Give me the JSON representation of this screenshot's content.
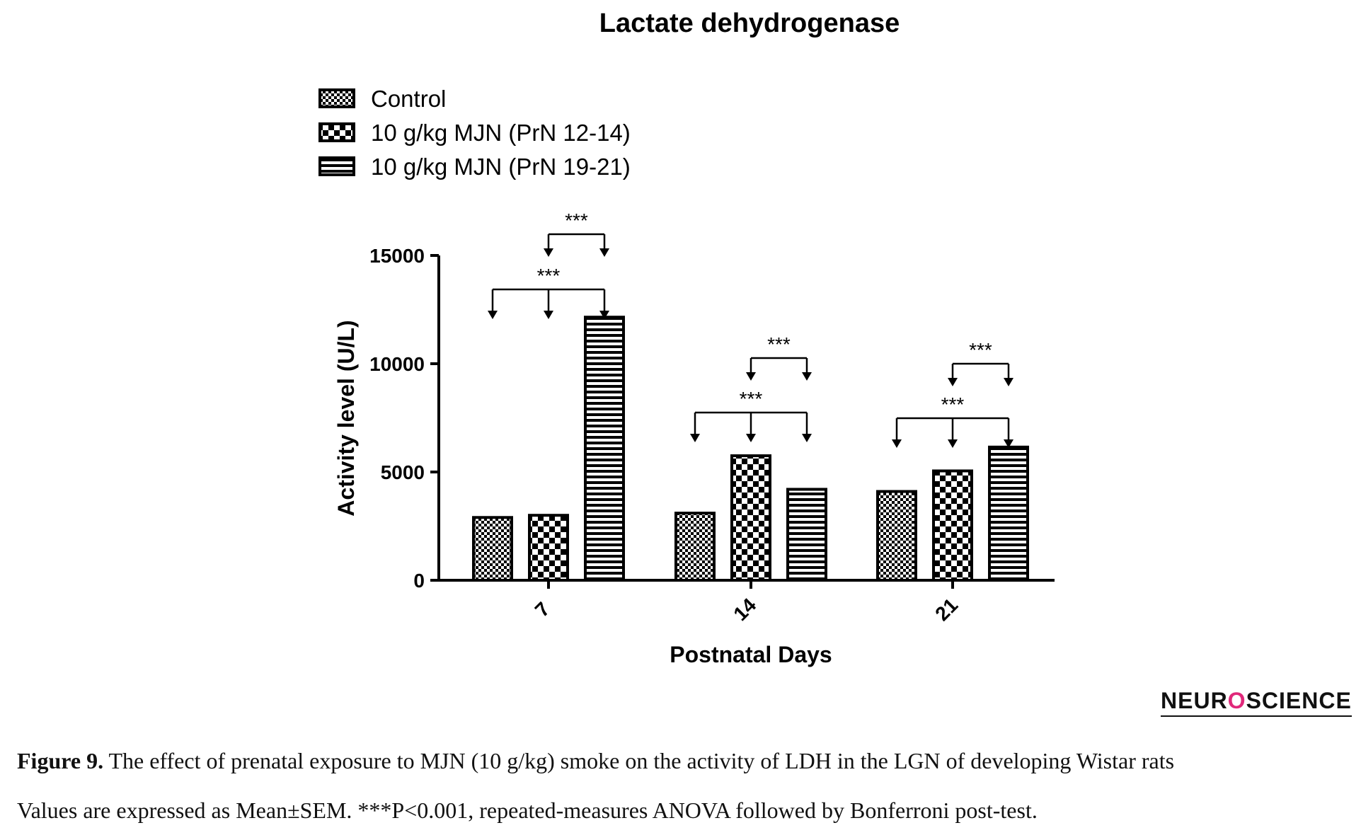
{
  "chart_data": {
    "type": "bar",
    "title": "Lactate dehydrogenase",
    "xlabel": "Postnatal Days",
    "ylabel": "Activity level (U/L)",
    "ylim": [
      0,
      15000
    ],
    "yticks": [
      "0",
      "5000",
      "10000",
      "15000"
    ],
    "categories": [
      "7",
      "14",
      "21"
    ],
    "legend_position": "top-left",
    "series": [
      {
        "name": "Control",
        "values": [
          2900,
          3100,
          4100
        ],
        "pattern": "fine-checker"
      },
      {
        "name": "10 g/kg MJN (PrN 12-14)",
        "values": [
          3000,
          5750,
          5050
        ],
        "pattern": "checker"
      },
      {
        "name": "10 g/kg MJN (PrN 19-21)",
        "values": [
          12150,
          4200,
          6150
        ],
        "pattern": "horizontal-stripes"
      }
    ],
    "significance_label": "***"
  },
  "logo": {
    "left": "NEUR",
    "mark": "O",
    "right": "SCIENCE"
  },
  "caption": {
    "label": "Figure 9.",
    "line1": " The effect of prenatal exposure to MJN (10 g/kg) smoke on the activity of LDH in the LGN of developing Wistar rats",
    "line2": "Values are expressed as Mean±SEM. ***P<0.001, repeated-measures ANOVA followed by Bonferroni post-test."
  },
  "colors": {
    "ink": "#000000",
    "logo_accent": "#e0287a"
  }
}
